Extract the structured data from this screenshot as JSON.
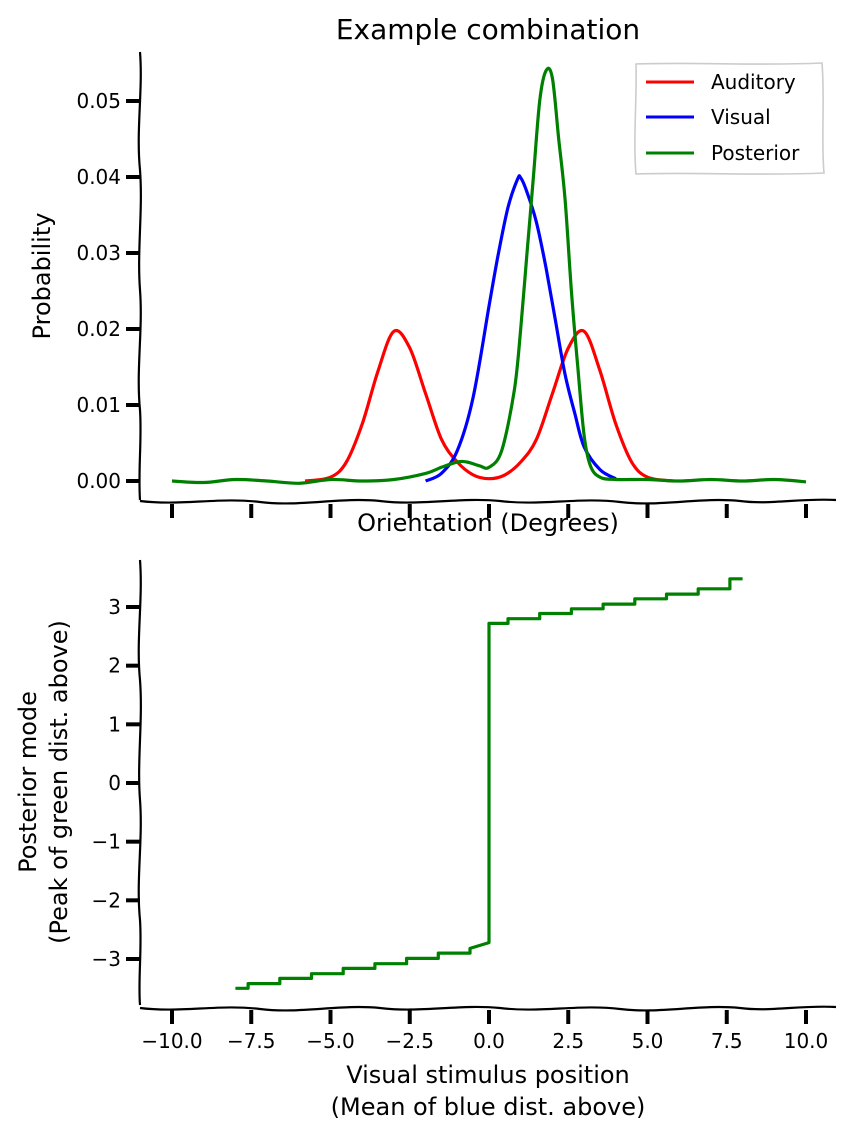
{
  "chart_data": [
    {
      "type": "line",
      "title": "Example combination",
      "xlabel": "Orientation (Degrees)",
      "ylabel": "Probability",
      "xlim": [
        -10.5,
        10.5
      ],
      "ylim": [
        -0.0025,
        0.057
      ],
      "yticks": [
        0.0,
        0.01,
        0.02,
        0.03,
        0.04,
        0.05
      ],
      "ytick_labels": [
        "0.00",
        "0.01",
        "0.02",
        "0.03",
        "0.04",
        "0.05"
      ],
      "xticks": [
        -10,
        -7.5,
        -5,
        -2.5,
        0,
        2.5,
        5,
        7.5,
        10
      ],
      "xtick_labels_visible": false,
      "legend": {
        "placement": "top-right",
        "entries": [
          "Auditory",
          "Visual",
          "Posterior"
        ]
      },
      "series": [
        {
          "name": "Auditory",
          "color": "#ff0000",
          "x": [
            -5.8,
            -5.0,
            -4.5,
            -4.0,
            -3.5,
            -3.0,
            -2.5,
            -2.0,
            -1.5,
            -1.0,
            -0.5,
            0.0,
            0.5,
            1.0,
            1.5,
            2.0,
            2.5,
            3.0,
            3.5,
            4.0,
            4.5,
            5.0,
            5.8
          ],
          "y": [
            0.0,
            0.0005,
            0.0025,
            0.0075,
            0.0145,
            0.0197,
            0.0175,
            0.0115,
            0.0055,
            0.0025,
            0.0008,
            0.0003,
            0.0008,
            0.0025,
            0.0055,
            0.0115,
            0.0175,
            0.0197,
            0.0145,
            0.0075,
            0.0025,
            0.0005,
            0.0
          ]
        },
        {
          "name": "Visual",
          "color": "#0000ff",
          "x": [
            -2.0,
            -1.5,
            -1.0,
            -0.5,
            0.0,
            0.3,
            0.6,
            0.9,
            1.0,
            1.2,
            1.5,
            1.8,
            2.1,
            2.4,
            2.7,
            3.0,
            3.5,
            4.0
          ],
          "y": [
            0.0,
            0.001,
            0.004,
            0.011,
            0.023,
            0.03,
            0.036,
            0.0397,
            0.0399,
            0.038,
            0.034,
            0.028,
            0.021,
            0.014,
            0.009,
            0.0045,
            0.0015,
            0.0003
          ]
        },
        {
          "name": "Posterior",
          "color": "#008000",
          "x": [
            -10,
            -9.0,
            -8.0,
            -7.0,
            -6.0,
            -5.0,
            -4.0,
            -3.0,
            -2.0,
            -1.5,
            -1.0,
            -0.7,
            -0.3,
            0.0,
            0.4,
            0.8,
            1.0,
            1.2,
            1.4,
            1.6,
            1.8,
            2.0,
            2.2,
            2.4,
            2.6,
            2.8,
            3.0,
            3.2,
            3.5,
            4.0,
            5.0,
            6.0,
            7.0,
            8.0,
            9.0,
            10.0
          ],
          "y": [
            0.0,
            -0.0002,
            0.0002,
            0.0,
            -0.0003,
            0.0002,
            0.0,
            0.0002,
            0.001,
            0.0018,
            0.0025,
            0.0025,
            0.002,
            0.0018,
            0.004,
            0.012,
            0.02,
            0.03,
            0.04,
            0.05,
            0.054,
            0.053,
            0.045,
            0.037,
            0.025,
            0.015,
            0.006,
            0.002,
            0.0005,
            0.0002,
            0.0002,
            0.0,
            0.0002,
            0.0,
            0.0002,
            -0.0001
          ]
        }
      ]
    },
    {
      "type": "line",
      "title": "",
      "xlabel": "Visual stimulus position\n(Mean of blue dist. above)",
      "ylabel": "Posterior mode\n(Peak of green dist. above)",
      "xlim": [
        -10.5,
        10.5
      ],
      "ylim": [
        -3.75,
        3.75
      ],
      "yticks": [
        -3,
        -2,
        -1,
        0,
        1,
        2,
        3
      ],
      "ytick_labels": [
        "−3",
        "−2",
        "−1",
        "0",
        "1",
        "2",
        "3"
      ],
      "xticks": [
        -10,
        -7.5,
        -5,
        -2.5,
        0,
        2.5,
        5,
        7.5,
        10
      ],
      "xtick_labels": [
        "−10.0",
        "−7.5",
        "−5.0",
        "−2.5",
        "0.0",
        "2.5",
        "5.0",
        "7.5",
        "10.0"
      ],
      "series": [
        {
          "color": "#008000",
          "x": [
            -8.0,
            -7.6,
            -7.6,
            -6.6,
            -6.6,
            -5.6,
            -5.6,
            -4.6,
            -4.6,
            -3.6,
            -3.6,
            -2.6,
            -2.6,
            -1.6,
            -1.6,
            -0.6,
            -0.6,
            0.0,
            0.0,
            0.6,
            0.6,
            1.6,
            1.6,
            2.6,
            2.6,
            3.6,
            3.6,
            4.6,
            4.6,
            5.6,
            5.6,
            6.6,
            6.6,
            7.6,
            7.6,
            8.0
          ],
          "y": [
            -3.5,
            -3.5,
            -3.42,
            -3.42,
            -3.33,
            -3.33,
            -3.25,
            -3.25,
            -3.16,
            -3.16,
            -3.08,
            -3.08,
            -2.99,
            -2.99,
            -2.9,
            -2.9,
            -2.82,
            -2.72,
            2.72,
            2.72,
            2.8,
            2.8,
            2.89,
            2.89,
            2.97,
            2.97,
            3.05,
            3.05,
            3.14,
            3.14,
            3.22,
            3.22,
            3.31,
            3.31,
            3.48,
            3.48
          ]
        }
      ]
    }
  ]
}
